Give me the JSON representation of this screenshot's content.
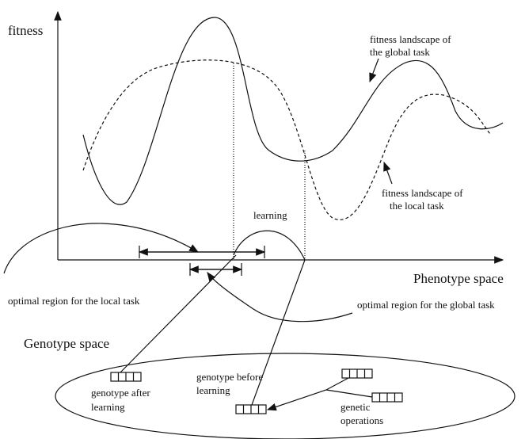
{
  "y_axis_label": "fitness",
  "x_axis_label": "Phenotype space",
  "global_landscape_label": [
    "fitness landscape of",
    "the global task"
  ],
  "local_landscape_label": [
    "fitness landscape of",
    "the local task"
  ],
  "learning_label": "learning",
  "local_region_label": "optimal region for the local task",
  "global_region_label": "optimal region for the global task",
  "genotype_space_label": "Genotype space",
  "genotype_after_label": [
    "genotype after",
    "learning"
  ],
  "genotype_before_label": [
    "genotype before",
    "learning"
  ],
  "genetic_operations_label": [
    "genetic",
    "operations"
  ]
}
